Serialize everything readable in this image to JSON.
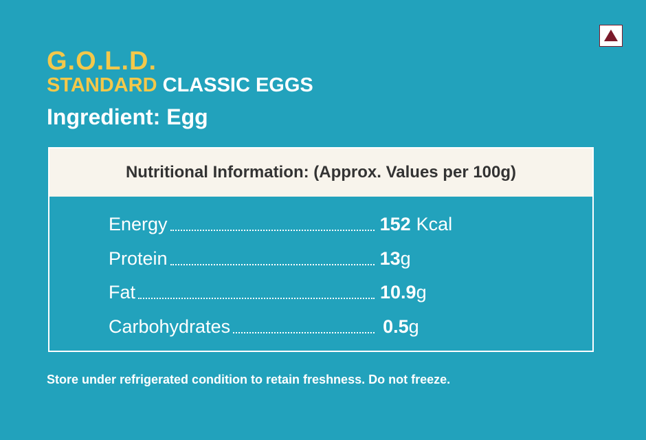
{
  "brand": {
    "logo": "G.O.L.D.",
    "standard": "STANDARD",
    "product": "CLASSIC EGGS"
  },
  "ingredient": "Ingredient: Egg",
  "table": {
    "header": "Nutritional Information: (Approx. Values per 100g)",
    "rows": [
      {
        "name": "Energy",
        "value": 152,
        "unit": "Kcal"
      },
      {
        "name": "Protein",
        "value": 13,
        "unit": "g"
      },
      {
        "name": "Fat",
        "value": 10.9,
        "unit": "g"
      },
      {
        "name": "Carbohydrates",
        "value": 0.5,
        "unit": "g"
      }
    ]
  },
  "note": "Store under refrigerated condition to retain freshness. Do not freeze."
}
